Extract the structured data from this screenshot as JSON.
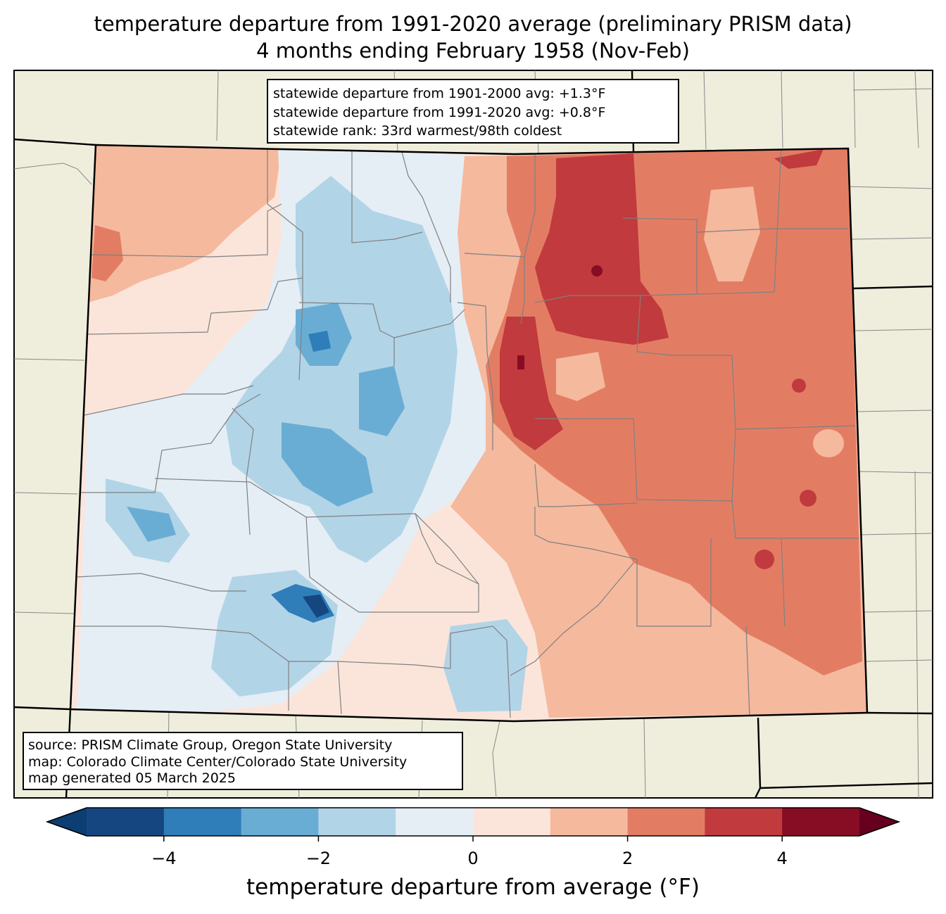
{
  "title": {
    "line1": "temperature departure from 1991-2020 average (preliminary PRISM data)",
    "line2": "4 months ending February 1958 (Nov-Feb)"
  },
  "stats": {
    "line1": "statewide departure from 1901-2000 avg: +1.3°F",
    "line2": "statewide departure from 1991-2020 avg: +0.8°F",
    "line3": "statewide rank: 33rd warmest/98th coldest"
  },
  "source": {
    "line1": "source: PRISM Climate Group, Oregon State University",
    "line2": "map: Colorado Climate Center/Colorado State University",
    "line3": "map generated 05 March 2025"
  },
  "colorbar": {
    "label": "temperature departure from average (°F)",
    "min": -5,
    "max": 5,
    "ticks": [
      "−4",
      "−2",
      "0",
      "2",
      "4"
    ],
    "tick_values": [
      -4,
      -2,
      0,
      2,
      4
    ],
    "colors": [
      "#0c3d73",
      "#16467f",
      "#2f7db9",
      "#6aadd4",
      "#b2d4e7",
      "#e5eef5",
      "#fbe5db",
      "#f5b99e",
      "#e27d63",
      "#c13a3d",
      "#870d24",
      "#67001f"
    ]
  },
  "map_colors": {
    "land": "#efeedc",
    "very_warm": "#870d24",
    "warm4": "#c13a3d",
    "warm3": "#e27d63",
    "warm2": "#f5b99e",
    "warm1": "#fbe5db",
    "cool1": "#e5eef5",
    "cool2": "#b2d4e7",
    "cool3": "#6aadd4",
    "cool4": "#2f7db9",
    "cool5": "#16467f"
  }
}
